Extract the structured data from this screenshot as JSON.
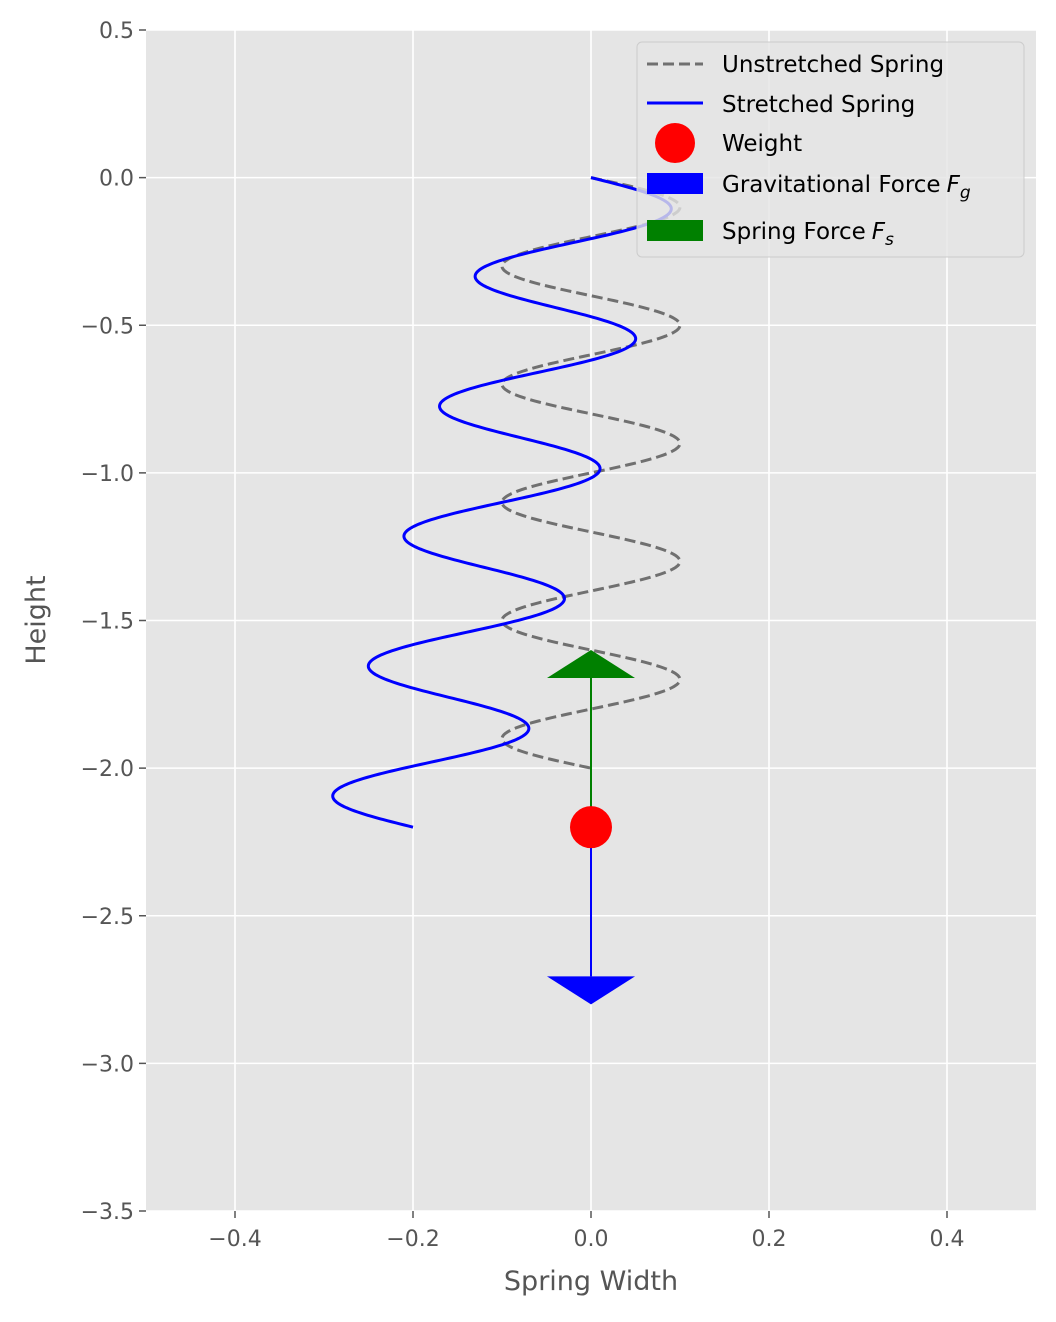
{
  "chart_data": {
    "type": "line",
    "title": "",
    "xlabel": "Spring Width",
    "ylabel": "Height",
    "xlim": [
      -0.5,
      0.5
    ],
    "ylim": [
      -3.5,
      0.5
    ],
    "xticks": [
      -0.4,
      -0.2,
      0.0,
      0.2,
      0.4
    ],
    "xtick_labels": [
      "−0.4",
      "−0.2",
      "0.0",
      "0.2",
      "0.4"
    ],
    "yticks": [
      0.5,
      0.0,
      -0.5,
      -1.0,
      -1.5,
      -2.0,
      -2.5,
      -3.0,
      -3.5
    ],
    "ytick_labels": [
      "0.5",
      "0.0",
      "−0.5",
      "−1.0",
      "−1.5",
      "−2.0",
      "−2.5",
      "−3.0",
      "−3.5"
    ],
    "grid": true,
    "style": "ggplot",
    "legend_position": "top-right",
    "unstretched_spring": {
      "name": "Unstretched Spring",
      "color": "#707070",
      "dash": true,
      "amplitude": 0.1,
      "y_start": 0.0,
      "y_end": -2.0,
      "cycles": 5
    },
    "stretched_spring": {
      "name": "Stretched Spring",
      "color": "#0000ff",
      "y_start": 0.0,
      "y_end": -2.2,
      "cycles": 5,
      "amplitude": 0.1,
      "x_drift_end": -0.2
    },
    "weight": {
      "name": "Weight",
      "color": "#ff0000",
      "x": 0.0,
      "y": -2.2
    },
    "gravitational_force": {
      "name": "Gravitational Force",
      "symbol": "F",
      "subscript": "g",
      "color": "#0000ff",
      "x": 0.0,
      "y_from": -2.2,
      "y_to": -2.8,
      "direction": "down"
    },
    "spring_force": {
      "name": "Spring Force",
      "symbol": "F",
      "subscript": "s",
      "color": "#008000",
      "x": 0.0,
      "y_from": -2.2,
      "y_to": -1.6,
      "direction": "up"
    }
  }
}
